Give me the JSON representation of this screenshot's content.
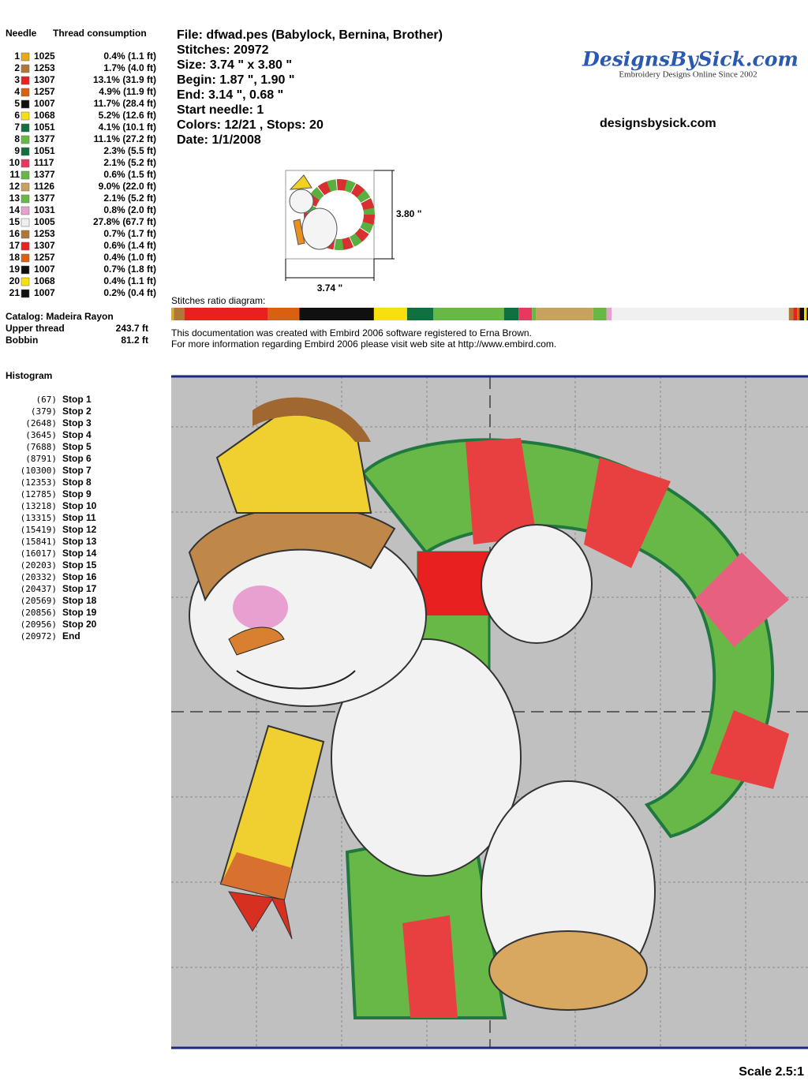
{
  "needle_table": {
    "headers": [
      "Needle",
      "Thread consumption"
    ],
    "rows": [
      {
        "needle": "1",
        "color": "#e8a818",
        "code": "1025",
        "consumption": "0.4% (1.1 ft)"
      },
      {
        "needle": "2",
        "color": "#b07838",
        "code": "1253",
        "consumption": "1.7% (4.0 ft)"
      },
      {
        "needle": "3",
        "color": "#e82020",
        "code": "1307",
        "consumption": "13.1% (31.9 ft)"
      },
      {
        "needle": "4",
        "color": "#d86010",
        "code": "1257",
        "consumption": "4.9% (11.9 ft)"
      },
      {
        "needle": "5",
        "color": "#101010",
        "code": "1007",
        "consumption": "11.7% (28.4 ft)"
      },
      {
        "needle": "6",
        "color": "#f8e010",
        "code": "1068",
        "consumption": "5.2% (12.6 ft)"
      },
      {
        "needle": "7",
        "color": "#107040",
        "code": "1051",
        "consumption": "4.1% (10.1 ft)"
      },
      {
        "needle": "8",
        "color": "#68b848",
        "code": "1377",
        "consumption": "11.1% (27.2 ft)"
      },
      {
        "needle": "9",
        "color": "#107040",
        "code": "1051",
        "consumption": "2.3% (5.5 ft)"
      },
      {
        "needle": "10",
        "color": "#e83860",
        "code": "1117",
        "consumption": "2.1% (5.2 ft)"
      },
      {
        "needle": "11",
        "color": "#68b848",
        "code": "1377",
        "consumption": "0.6% (1.5 ft)"
      },
      {
        "needle": "12",
        "color": "#c8a060",
        "code": "1126",
        "consumption": "9.0% (22.0 ft)"
      },
      {
        "needle": "13",
        "color": "#68b848",
        "code": "1377",
        "consumption": "2.1% (5.2 ft)"
      },
      {
        "needle": "14",
        "color": "#e8a0d0",
        "code": "1031",
        "consumption": "0.8% (2.0 ft)"
      },
      {
        "needle": "15",
        "color": "#f0f0f0",
        "code": "1005",
        "consumption": "27.8% (67.7 ft)"
      },
      {
        "needle": "16",
        "color": "#b07838",
        "code": "1253",
        "consumption": "0.7% (1.7 ft)"
      },
      {
        "needle": "17",
        "color": "#e82020",
        "code": "1307",
        "consumption": "0.6% (1.4 ft)"
      },
      {
        "needle": "18",
        "color": "#d86010",
        "code": "1257",
        "consumption": "0.4% (1.0 ft)"
      },
      {
        "needle": "19",
        "color": "#101010",
        "code": "1007",
        "consumption": "0.7% (1.8 ft)"
      },
      {
        "needle": "20",
        "color": "#f8e010",
        "code": "1068",
        "consumption": "0.4% (1.1 ft)"
      },
      {
        "needle": "21",
        "color": "#101010",
        "code": "1007",
        "consumption": "0.2% (0.4 ft)"
      }
    ]
  },
  "catalog": {
    "title": "Catalog: Madeira Rayon",
    "upper_label": "Upper thread",
    "upper_value": "243.7 ft",
    "bobbin_label": "Bobbin",
    "bobbin_value": "81.2 ft"
  },
  "histogram": {
    "title": "Histogram",
    "stops": [
      {
        "count": "(67)",
        "label": "Stop 1"
      },
      {
        "count": "(379)",
        "label": "Stop 2"
      },
      {
        "count": "(2648)",
        "label": "Stop 3"
      },
      {
        "count": "(3645)",
        "label": "Stop 4"
      },
      {
        "count": "(7688)",
        "label": "Stop 5"
      },
      {
        "count": "(8791)",
        "label": "Stop 6"
      },
      {
        "count": "(10300)",
        "label": "Stop 7"
      },
      {
        "count": "(12353)",
        "label": "Stop 8"
      },
      {
        "count": "(12785)",
        "label": "Stop 9"
      },
      {
        "count": "(13218)",
        "label": "Stop 10"
      },
      {
        "count": "(13315)",
        "label": "Stop 11"
      },
      {
        "count": "(15419)",
        "label": "Stop 12"
      },
      {
        "count": "(15841)",
        "label": "Stop 13"
      },
      {
        "count": "(16017)",
        "label": "Stop 14"
      },
      {
        "count": "(20203)",
        "label": "Stop 15"
      },
      {
        "count": "(20332)",
        "label": "Stop 16"
      },
      {
        "count": "(20437)",
        "label": "Stop 17"
      },
      {
        "count": "(20569)",
        "label": "Stop 18"
      },
      {
        "count": "(20856)",
        "label": "Stop 19"
      },
      {
        "count": "(20956)",
        "label": "Stop 20"
      },
      {
        "count": "(20972)",
        "label": "End"
      }
    ]
  },
  "info": [
    "File: dfwad.pes  (Babylock, Bernina, Brother)",
    "Stitches: 20972",
    "Size: 3.74 \" x 3.80 \"",
    "Begin: 1.87 \", 1.90 \"",
    "End: 3.14 \", 0.68 \"",
    "Start needle: 1",
    "Colors: 12/21 , Stops: 20",
    "Date: 1/1/2008"
  ],
  "logo": {
    "name": "DesignsBySick.com",
    "tagline": "Embroidery Designs Online Since 2002",
    "url": "designsbysick.com"
  },
  "thumbnail": {
    "height_label": "3.80 \"",
    "width_label": "3.74 \""
  },
  "ratio_diagram": {
    "title": "Stitches ratio diagram:"
  },
  "notes": [
    "This documentation was created with Embird 2006 software registered to Erna Brown.",
    "For more information regarding Embird 2006 please visit web site at http://www.embird.com."
  ],
  "scale": "Scale 2.5:1"
}
